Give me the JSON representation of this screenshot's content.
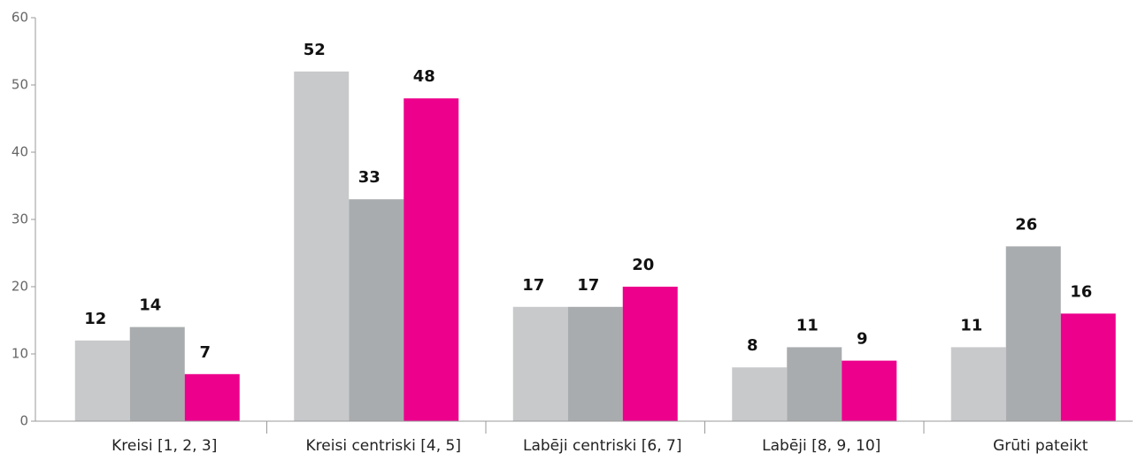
{
  "chart_data": {
    "type": "bar",
    "categories": [
      "Kreisi [1, 2, 3]",
      "Kreisi centriski [4, 5]",
      "Labēji centriski [6, 7]",
      "Labēji [8, 9, 10]",
      "Grūti pateikt"
    ],
    "series": [
      {
        "color": "#c8c9cb",
        "values": [
          12,
          52,
          17,
          8,
          11
        ]
      },
      {
        "color": "#a9acaf",
        "values": [
          14,
          33,
          17,
          11,
          26
        ]
      },
      {
        "color": "#ec008c",
        "values": [
          7,
          48,
          20,
          9,
          16
        ]
      }
    ],
    "ylim": [
      0,
      60
    ],
    "yticks": [
      0,
      10,
      20,
      30,
      40,
      50,
      60
    ],
    "grid": false
  }
}
